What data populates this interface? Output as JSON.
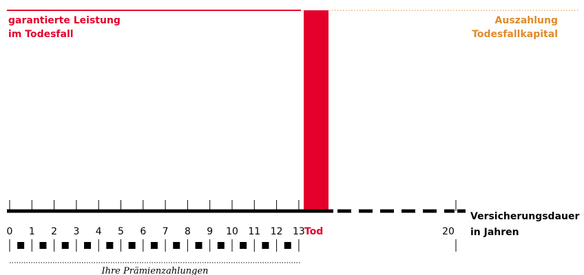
{
  "labels": {
    "guaranteed": [
      "garantierte Leistung",
      "im Todesfall"
    ],
    "payout": [
      "Auszahlung",
      "Todesfallkapital"
    ],
    "axis": [
      "Versicherungsdauer",
      "in Jahren"
    ],
    "death": "Tod",
    "premiums": "Ihre Prämienzahlungen"
  },
  "ticks": [
    0,
    1,
    2,
    3,
    4,
    5,
    6,
    7,
    8,
    9,
    10,
    11,
    12,
    13
  ],
  "tick_end": 20
}
